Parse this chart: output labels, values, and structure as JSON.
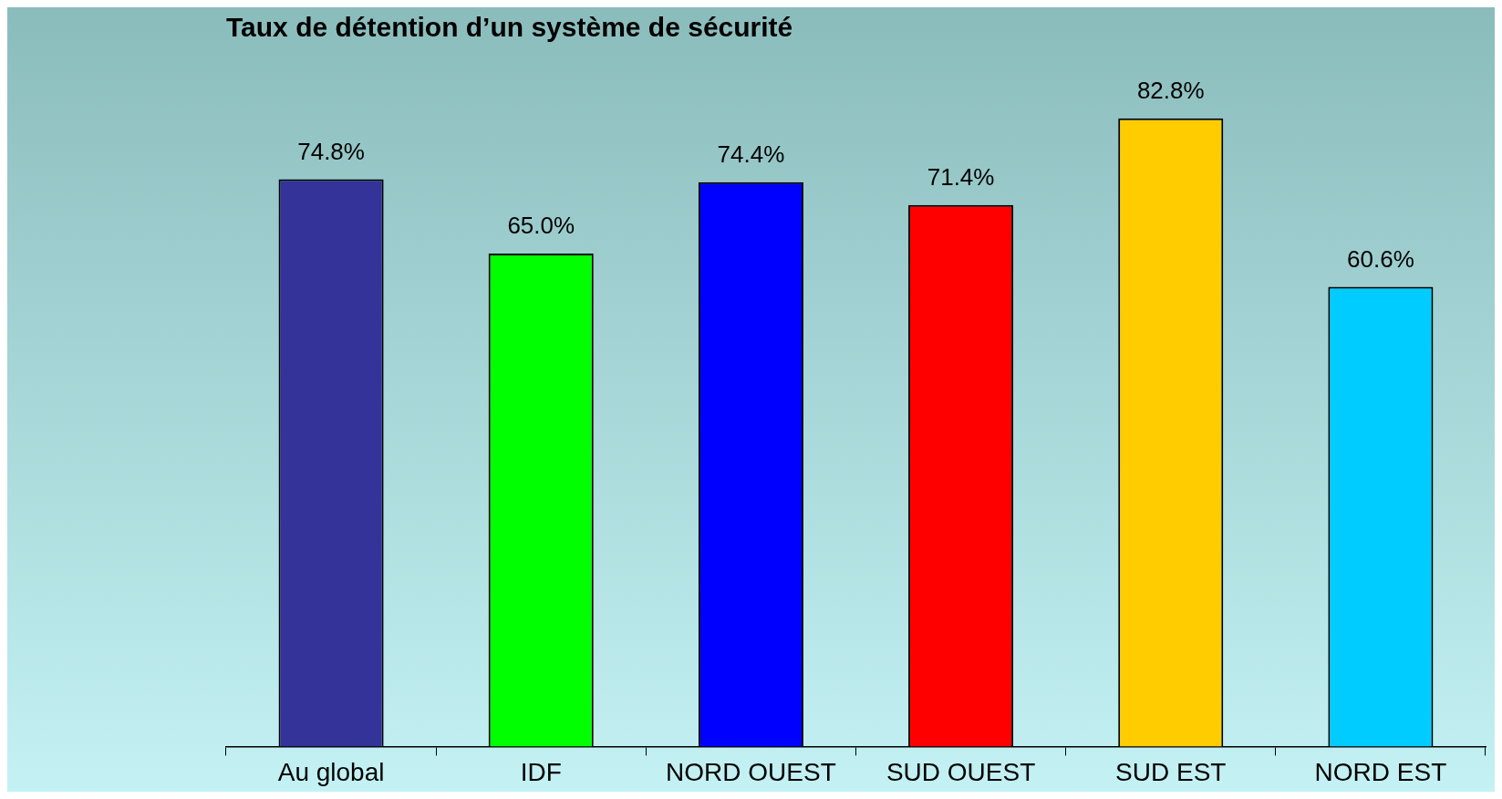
{
  "chart_data": {
    "type": "bar",
    "title": "Taux de détention d’un système de sécurité",
    "categories": [
      "Au global",
      "IDF",
      "NORD OUEST",
      "SUD OUEST",
      "SUD EST",
      "NORD EST"
    ],
    "values": [
      74.8,
      65.0,
      74.4,
      71.4,
      82.8,
      60.6
    ],
    "colors": [
      "#333399",
      "#00ff00",
      "#0000ff",
      "#ff0000",
      "#ffcc00",
      "#00ccff"
    ],
    "value_labels": [
      "74.8%",
      "65.0%",
      "74.4%",
      "71.4%",
      "82.8%",
      "60.6%"
    ],
    "grid": false,
    "legend": false
  }
}
